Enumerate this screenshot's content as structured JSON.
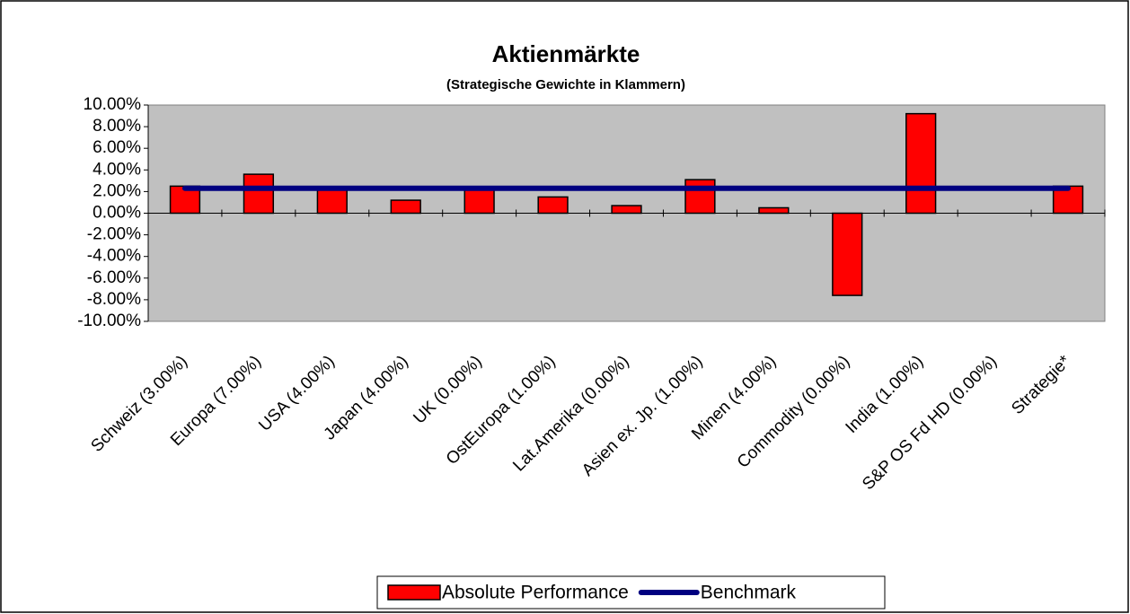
{
  "chart_data": {
    "type": "bar",
    "title": "Aktienmärkte",
    "subtitle": "(Strategische Gewichte in Klammern)",
    "categories": [
      "Schweiz (3.00%)",
      "Europa (7.00%)",
      "USA (4.00%)",
      "Japan (4.00%)",
      "UK (0.00%)",
      "OstEuropa (1.00%)",
      "Lat.Amerika (0.00%)",
      "Asien ex. Jp. (1.00%)",
      "Minen (4.00%)",
      "Commodity (0.00%)",
      "India (1.00%)",
      "S&P OS Fd HD (0.00%)",
      "Strategie*"
    ],
    "series": [
      {
        "name": "Absolute Performance",
        "color": "#ff0000",
        "type": "bar",
        "values": [
          2.5,
          3.6,
          2.2,
          1.2,
          2.2,
          1.5,
          0.7,
          3.1,
          0.5,
          -7.6,
          9.2,
          0,
          2.5
        ]
      },
      {
        "name": "Benchmark",
        "color": "#000080",
        "type": "line",
        "values": [
          2.3,
          2.3,
          2.3,
          2.3,
          2.3,
          2.3,
          2.3,
          2.3,
          2.3,
          2.3,
          2.3,
          2.3,
          2.3
        ]
      }
    ],
    "ylim": [
      -10,
      10
    ],
    "yticks": [
      {
        "value": 10,
        "label": "10.00%"
      },
      {
        "value": 8,
        "label": "8.00%"
      },
      {
        "value": 6,
        "label": "6.00%"
      },
      {
        "value": 4,
        "label": "4.00%"
      },
      {
        "value": 2,
        "label": "2.00%"
      },
      {
        "value": 0,
        "label": "0.00%"
      },
      {
        "value": -2,
        "label": "-2.00%"
      },
      {
        "value": -4,
        "label": "-4.00%"
      },
      {
        "value": -6,
        "label": "-6.00%"
      },
      {
        "value": -8,
        "label": "-8.00%"
      },
      {
        "value": -10,
        "label": "-10.00%"
      }
    ],
    "plot_background": "#c0c0c0",
    "legend": "bottom"
  }
}
